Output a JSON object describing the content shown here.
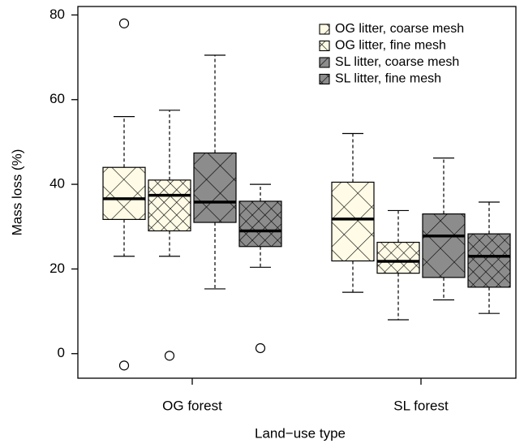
{
  "chart_data": {
    "type": "box",
    "x_label": "Land−use type",
    "y_label": "Mass loss (%)",
    "categories": [
      "OG forest",
      "SL forest"
    ],
    "ylim": [
      -5.8,
      82
    ],
    "yticks": [
      0,
      20,
      40,
      60,
      80
    ],
    "legend": "top-right",
    "series": [
      {
        "name": "OG litter, coarse mesh",
        "color": "#fffbe6",
        "whisker_low": [
          23,
          14.5
        ],
        "q1": [
          31.7,
          21.9
        ],
        "median": [
          36.6,
          31.8
        ],
        "q3": [
          44,
          40.5
        ],
        "whisker_high": [
          56,
          52
        ],
        "outliers": [
          [
            78,
            -2.8
          ],
          []
        ]
      },
      {
        "name": "OG litter, fine mesh",
        "color": "#fffbe6",
        "whisker_low": [
          23,
          8
        ],
        "q1": [
          29,
          19
        ],
        "median": [
          37.4,
          21.8
        ],
        "q3": [
          41,
          26.3
        ],
        "whisker_high": [
          57.5,
          33.8
        ],
        "outliers": [
          [
            -0.5
          ],
          []
        ]
      },
      {
        "name": "SL litter, coarse mesh",
        "color": "#8c8c8c",
        "whisker_low": [
          15.3,
          12.7
        ],
        "q1": [
          31,
          18
        ],
        "median": [
          35.8,
          27.8
        ],
        "q3": [
          47.4,
          33
        ],
        "whisker_high": [
          70.5,
          46.2
        ],
        "outliers": [
          [],
          []
        ]
      },
      {
        "name": "SL litter, fine mesh",
        "color": "#8c8c8c",
        "whisker_low": [
          20.4,
          9.5
        ],
        "q1": [
          25.3,
          15.7
        ],
        "median": [
          29,
          23
        ],
        "q3": [
          36,
          28.3
        ],
        "whisker_high": [
          40,
          35.8
        ],
        "outliers": [
          [
            1.3
          ],
          []
        ]
      }
    ]
  }
}
